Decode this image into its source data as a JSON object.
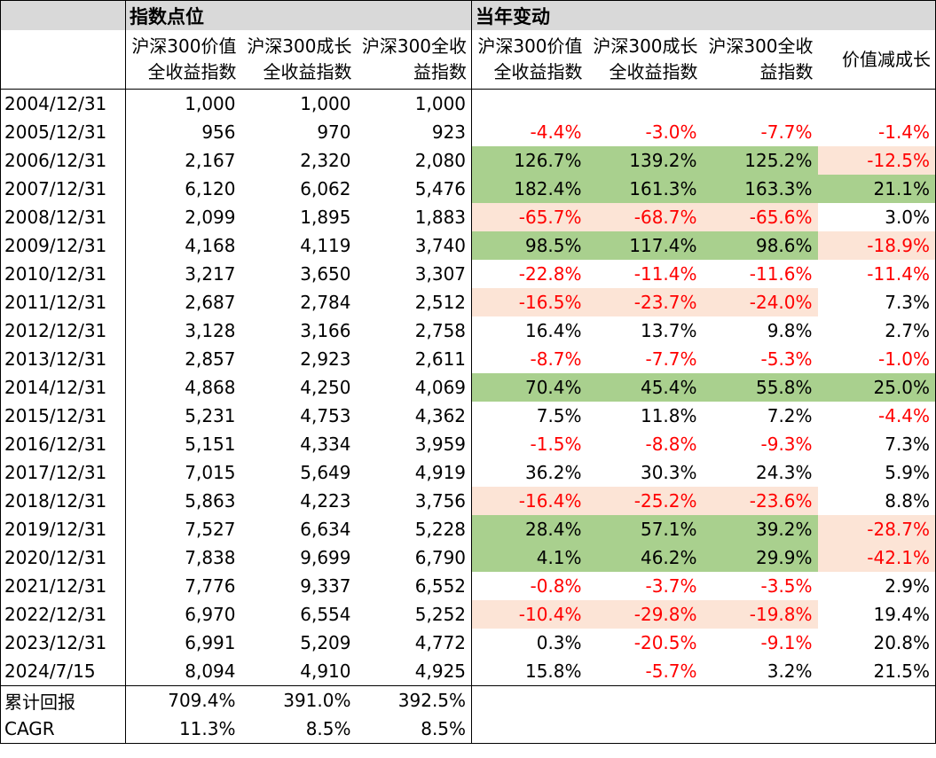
{
  "groups": {
    "level": "指数点位",
    "change": "当年变动"
  },
  "headers": {
    "value": [
      "沪深300价值\n全收益指数",
      "沪深300成长\n全收益指数",
      "沪深300全收\n益指数"
    ],
    "change": [
      "沪深300价值\n全收益指数",
      "沪深300成长\n全收益指数",
      "沪深300全收\n益指数",
      "价值减成长"
    ]
  },
  "rows": [
    {
      "date": "2004/12/31",
      "v": [
        "1,000",
        "1,000",
        "1,000"
      ],
      "c": [
        "",
        "",
        "",
        ""
      ],
      "hl": ""
    },
    {
      "date": "2005/12/31",
      "v": [
        "956",
        "970",
        "923"
      ],
      "c": [
        "-4.4%",
        "-3.0%",
        "-7.7%",
        "-1.4%"
      ],
      "hl": ""
    },
    {
      "date": "2006/12/31",
      "v": [
        "2,167",
        "2,320",
        "2,080"
      ],
      "c": [
        "126.7%",
        "139.2%",
        "125.2%",
        "-12.5%"
      ],
      "hl": "green"
    },
    {
      "date": "2007/12/31",
      "v": [
        "6,120",
        "6,062",
        "5,476"
      ],
      "c": [
        "182.4%",
        "161.3%",
        "163.3%",
        "21.1%"
      ],
      "hl": "green"
    },
    {
      "date": "2008/12/31",
      "v": [
        "2,099",
        "1,895",
        "1,883"
      ],
      "c": [
        "-65.7%",
        "-68.7%",
        "-65.6%",
        "3.0%"
      ],
      "hl": "pink"
    },
    {
      "date": "2009/12/31",
      "v": [
        "4,168",
        "4,119",
        "3,740"
      ],
      "c": [
        "98.5%",
        "117.4%",
        "98.6%",
        "-18.9%"
      ],
      "hl": "green"
    },
    {
      "date": "2010/12/31",
      "v": [
        "3,217",
        "3,650",
        "3,307"
      ],
      "c": [
        "-22.8%",
        "-11.4%",
        "-11.6%",
        "-11.4%"
      ],
      "hl": ""
    },
    {
      "date": "2011/12/31",
      "v": [
        "2,687",
        "2,784",
        "2,512"
      ],
      "c": [
        "-16.5%",
        "-23.7%",
        "-24.0%",
        "7.3%"
      ],
      "hl": "pink"
    },
    {
      "date": "2012/12/31",
      "v": [
        "3,128",
        "3,166",
        "2,758"
      ],
      "c": [
        "16.4%",
        "13.7%",
        "9.8%",
        "2.7%"
      ],
      "hl": ""
    },
    {
      "date": "2013/12/31",
      "v": [
        "2,857",
        "2,923",
        "2,611"
      ],
      "c": [
        "-8.7%",
        "-7.7%",
        "-5.3%",
        "-1.0%"
      ],
      "hl": ""
    },
    {
      "date": "2014/12/31",
      "v": [
        "4,868",
        "4,250",
        "4,069"
      ],
      "c": [
        "70.4%",
        "45.4%",
        "55.8%",
        "25.0%"
      ],
      "hl": "green"
    },
    {
      "date": "2015/12/31",
      "v": [
        "5,231",
        "4,753",
        "4,362"
      ],
      "c": [
        "7.5%",
        "11.8%",
        "7.2%",
        "-4.4%"
      ],
      "hl": ""
    },
    {
      "date": "2016/12/31",
      "v": [
        "5,151",
        "4,334",
        "3,959"
      ],
      "c": [
        "-1.5%",
        "-8.8%",
        "-9.3%",
        "7.3%"
      ],
      "hl": ""
    },
    {
      "date": "2017/12/31",
      "v": [
        "7,015",
        "5,649",
        "4,919"
      ],
      "c": [
        "36.2%",
        "30.3%",
        "24.3%",
        "5.9%"
      ],
      "hl": ""
    },
    {
      "date": "2018/12/31",
      "v": [
        "5,863",
        "4,223",
        "3,756"
      ],
      "c": [
        "-16.4%",
        "-25.2%",
        "-23.6%",
        "8.8%"
      ],
      "hl": "pink"
    },
    {
      "date": "2019/12/31",
      "v": [
        "7,527",
        "6,634",
        "5,228"
      ],
      "c": [
        "28.4%",
        "57.1%",
        "39.2%",
        "-28.7%"
      ],
      "hl": "green"
    },
    {
      "date": "2020/12/31",
      "v": [
        "7,838",
        "9,699",
        "6,790"
      ],
      "c": [
        "4.1%",
        "46.2%",
        "29.9%",
        "-42.1%"
      ],
      "hl": "green"
    },
    {
      "date": "2021/12/31",
      "v": [
        "7,776",
        "9,337",
        "6,552"
      ],
      "c": [
        "-0.8%",
        "-3.7%",
        "-3.5%",
        "2.9%"
      ],
      "hl": ""
    },
    {
      "date": "2022/12/31",
      "v": [
        "6,970",
        "6,554",
        "5,252"
      ],
      "c": [
        "-10.4%",
        "-29.8%",
        "-19.8%",
        "19.4%"
      ],
      "hl": "pink"
    },
    {
      "date": "2023/12/31",
      "v": [
        "6,991",
        "5,209",
        "4,772"
      ],
      "c": [
        "0.3%",
        "-20.5%",
        "-9.1%",
        "20.8%"
      ],
      "hl": ""
    },
    {
      "date": "2024/7/15",
      "v": [
        "8,094",
        "4,910",
        "4,925"
      ],
      "c": [
        "15.8%",
        "-5.7%",
        "3.2%",
        "21.5%"
      ],
      "hl": ""
    }
  ],
  "summary": [
    {
      "label": "累计回报",
      "v": [
        "709.4%",
        "391.0%",
        "392.5%"
      ]
    },
    {
      "label": "CAGR",
      "v": [
        "11.3%",
        "8.5%",
        "8.5%"
      ]
    }
  ],
  "colors": {
    "header_bg": "#d9d9d9",
    "green": "#a9d08e",
    "pink": "#fce4d6",
    "negative": "#ff0000"
  }
}
